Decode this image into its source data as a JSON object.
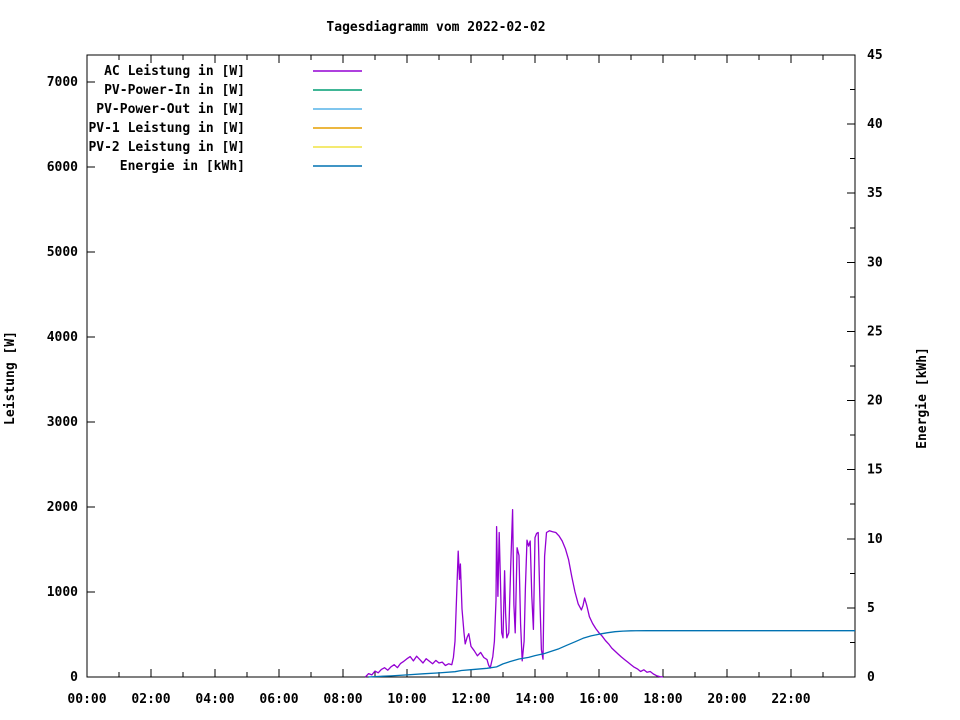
{
  "chart_data": {
    "type": "line",
    "title": "Tagesdiagramm vom 2022-02-02",
    "grid": false,
    "legend_position": "top-left-inside",
    "x_axis": {
      "label": "",
      "range_hours": [
        0,
        24
      ],
      "major_tick_hours": 2,
      "minor_tick_hours": 1,
      "tick_labels": [
        "00:00",
        "02:00",
        "04:00",
        "06:00",
        "08:00",
        "10:00",
        "12:00",
        "14:00",
        "16:00",
        "18:00",
        "20:00",
        "22:00"
      ]
    },
    "y_left": {
      "label": "Leistung [W]",
      "range": [
        0,
        7320
      ],
      "major_tick": 1000,
      "tick_labels": [
        "0",
        "1000",
        "2000",
        "3000",
        "4000",
        "5000",
        "6000",
        "7000"
      ]
    },
    "y_right": {
      "label": "Energie [kWh]",
      "range": [
        0,
        45
      ],
      "major_tick": 5,
      "minor_tick": 2.5,
      "tick_labels": [
        "0",
        "5",
        "10",
        "15",
        "20",
        "25",
        "30",
        "35",
        "40",
        "45"
      ]
    },
    "series": [
      {
        "name": "AC Leistung in [W]",
        "color": "#9400D3",
        "axis": "left",
        "points": [
          [
            8.7,
            0
          ],
          [
            8.8,
            40
          ],
          [
            8.9,
            25
          ],
          [
            9.0,
            70
          ],
          [
            9.1,
            50
          ],
          [
            9.2,
            90
          ],
          [
            9.3,
            110
          ],
          [
            9.4,
            80
          ],
          [
            9.5,
            120
          ],
          [
            9.6,
            145
          ],
          [
            9.7,
            110
          ],
          [
            9.8,
            160
          ],
          [
            9.9,
            185
          ],
          [
            10.0,
            215
          ],
          [
            10.1,
            240
          ],
          [
            10.2,
            190
          ],
          [
            10.3,
            245
          ],
          [
            10.4,
            205
          ],
          [
            10.5,
            165
          ],
          [
            10.6,
            215
          ],
          [
            10.7,
            185
          ],
          [
            10.8,
            155
          ],
          [
            10.9,
            195
          ],
          [
            11.0,
            165
          ],
          [
            11.1,
            175
          ],
          [
            11.2,
            135
          ],
          [
            11.3,
            155
          ],
          [
            11.4,
            145
          ],
          [
            11.45,
            230
          ],
          [
            11.5,
            420
          ],
          [
            11.55,
            950
          ],
          [
            11.6,
            1480
          ],
          [
            11.64,
            1150
          ],
          [
            11.67,
            1330
          ],
          [
            11.72,
            800
          ],
          [
            11.78,
            520
          ],
          [
            11.82,
            390
          ],
          [
            11.88,
            470
          ],
          [
            11.93,
            510
          ],
          [
            12.0,
            360
          ],
          [
            12.1,
            310
          ],
          [
            12.2,
            250
          ],
          [
            12.3,
            290
          ],
          [
            12.4,
            230
          ],
          [
            12.5,
            205
          ],
          [
            12.55,
            140
          ],
          [
            12.6,
            105
          ],
          [
            12.68,
            240
          ],
          [
            12.73,
            420
          ],
          [
            12.78,
            900
          ],
          [
            12.8,
            1770
          ],
          [
            12.84,
            950
          ],
          [
            12.88,
            1700
          ],
          [
            12.92,
            1150
          ],
          [
            12.96,
            520
          ],
          [
            13.0,
            460
          ],
          [
            13.05,
            1250
          ],
          [
            13.08,
            750
          ],
          [
            13.12,
            460
          ],
          [
            13.18,
            520
          ],
          [
            13.24,
            1300
          ],
          [
            13.3,
            1970
          ],
          [
            13.34,
            850
          ],
          [
            13.38,
            520
          ],
          [
            13.44,
            1520
          ],
          [
            13.5,
            1430
          ],
          [
            13.55,
            620
          ],
          [
            13.6,
            190
          ],
          [
            13.66,
            420
          ],
          [
            13.7,
            1050
          ],
          [
            13.75,
            1610
          ],
          [
            13.8,
            1540
          ],
          [
            13.85,
            1600
          ],
          [
            13.9,
            950
          ],
          [
            13.95,
            560
          ],
          [
            14.0,
            1640
          ],
          [
            14.05,
            1690
          ],
          [
            14.1,
            1700
          ],
          [
            14.15,
            950
          ],
          [
            14.2,
            320
          ],
          [
            14.25,
            210
          ],
          [
            14.3,
            1420
          ],
          [
            14.36,
            1700
          ],
          [
            14.45,
            1720
          ],
          [
            14.55,
            1710
          ],
          [
            14.65,
            1700
          ],
          [
            14.75,
            1660
          ],
          [
            14.85,
            1600
          ],
          [
            14.95,
            1510
          ],
          [
            15.05,
            1380
          ],
          [
            15.15,
            1180
          ],
          [
            15.25,
            1000
          ],
          [
            15.35,
            860
          ],
          [
            15.45,
            790
          ],
          [
            15.5,
            840
          ],
          [
            15.55,
            930
          ],
          [
            15.62,
            840
          ],
          [
            15.7,
            710
          ],
          [
            15.8,
            630
          ],
          [
            15.9,
            570
          ],
          [
            16.0,
            520
          ],
          [
            16.1,
            480
          ],
          [
            16.2,
            430
          ],
          [
            16.3,
            390
          ],
          [
            16.4,
            340
          ],
          [
            16.5,
            305
          ],
          [
            16.6,
            270
          ],
          [
            16.7,
            235
          ],
          [
            16.8,
            205
          ],
          [
            16.9,
            175
          ],
          [
            17.0,
            145
          ],
          [
            17.1,
            115
          ],
          [
            17.2,
            95
          ],
          [
            17.3,
            65
          ],
          [
            17.4,
            85
          ],
          [
            17.5,
            55
          ],
          [
            17.6,
            65
          ],
          [
            17.7,
            35
          ],
          [
            17.8,
            15
          ],
          [
            17.9,
            5
          ],
          [
            18.0,
            0
          ]
        ]
      },
      {
        "name": "PV-Power-In in [W]",
        "color": "#009E73",
        "axis": "left",
        "points": []
      },
      {
        "name": "PV-Power-Out in [W]",
        "color": "#56B4E9",
        "axis": "left",
        "points": []
      },
      {
        "name": "PV-1 Leistung in [W]",
        "color": "#E69F00",
        "axis": "left",
        "points": []
      },
      {
        "name": "PV-2 Leistung in [W]",
        "color": "#F0E442",
        "axis": "left",
        "points": []
      },
      {
        "name": "Energie in [kWh]",
        "color": "#0072B2",
        "axis": "right",
        "points": [
          [
            8.8,
            0
          ],
          [
            9.0,
            0.03
          ],
          [
            9.5,
            0.08
          ],
          [
            10.0,
            0.15
          ],
          [
            10.5,
            0.23
          ],
          [
            11.0,
            0.3
          ],
          [
            11.5,
            0.38
          ],
          [
            11.7,
            0.47
          ],
          [
            12.0,
            0.53
          ],
          [
            12.5,
            0.63
          ],
          [
            12.8,
            0.73
          ],
          [
            13.0,
            0.95
          ],
          [
            13.2,
            1.1
          ],
          [
            13.5,
            1.3
          ],
          [
            13.8,
            1.42
          ],
          [
            14.0,
            1.55
          ],
          [
            14.3,
            1.7
          ],
          [
            14.5,
            1.85
          ],
          [
            14.75,
            2.05
          ],
          [
            15.0,
            2.3
          ],
          [
            15.25,
            2.55
          ],
          [
            15.5,
            2.8
          ],
          [
            15.75,
            2.97
          ],
          [
            16.0,
            3.1
          ],
          [
            16.25,
            3.2
          ],
          [
            16.5,
            3.28
          ],
          [
            16.75,
            3.32
          ],
          [
            17.0,
            3.34
          ],
          [
            17.5,
            3.35
          ],
          [
            24.0,
            3.35
          ]
        ]
      }
    ]
  }
}
